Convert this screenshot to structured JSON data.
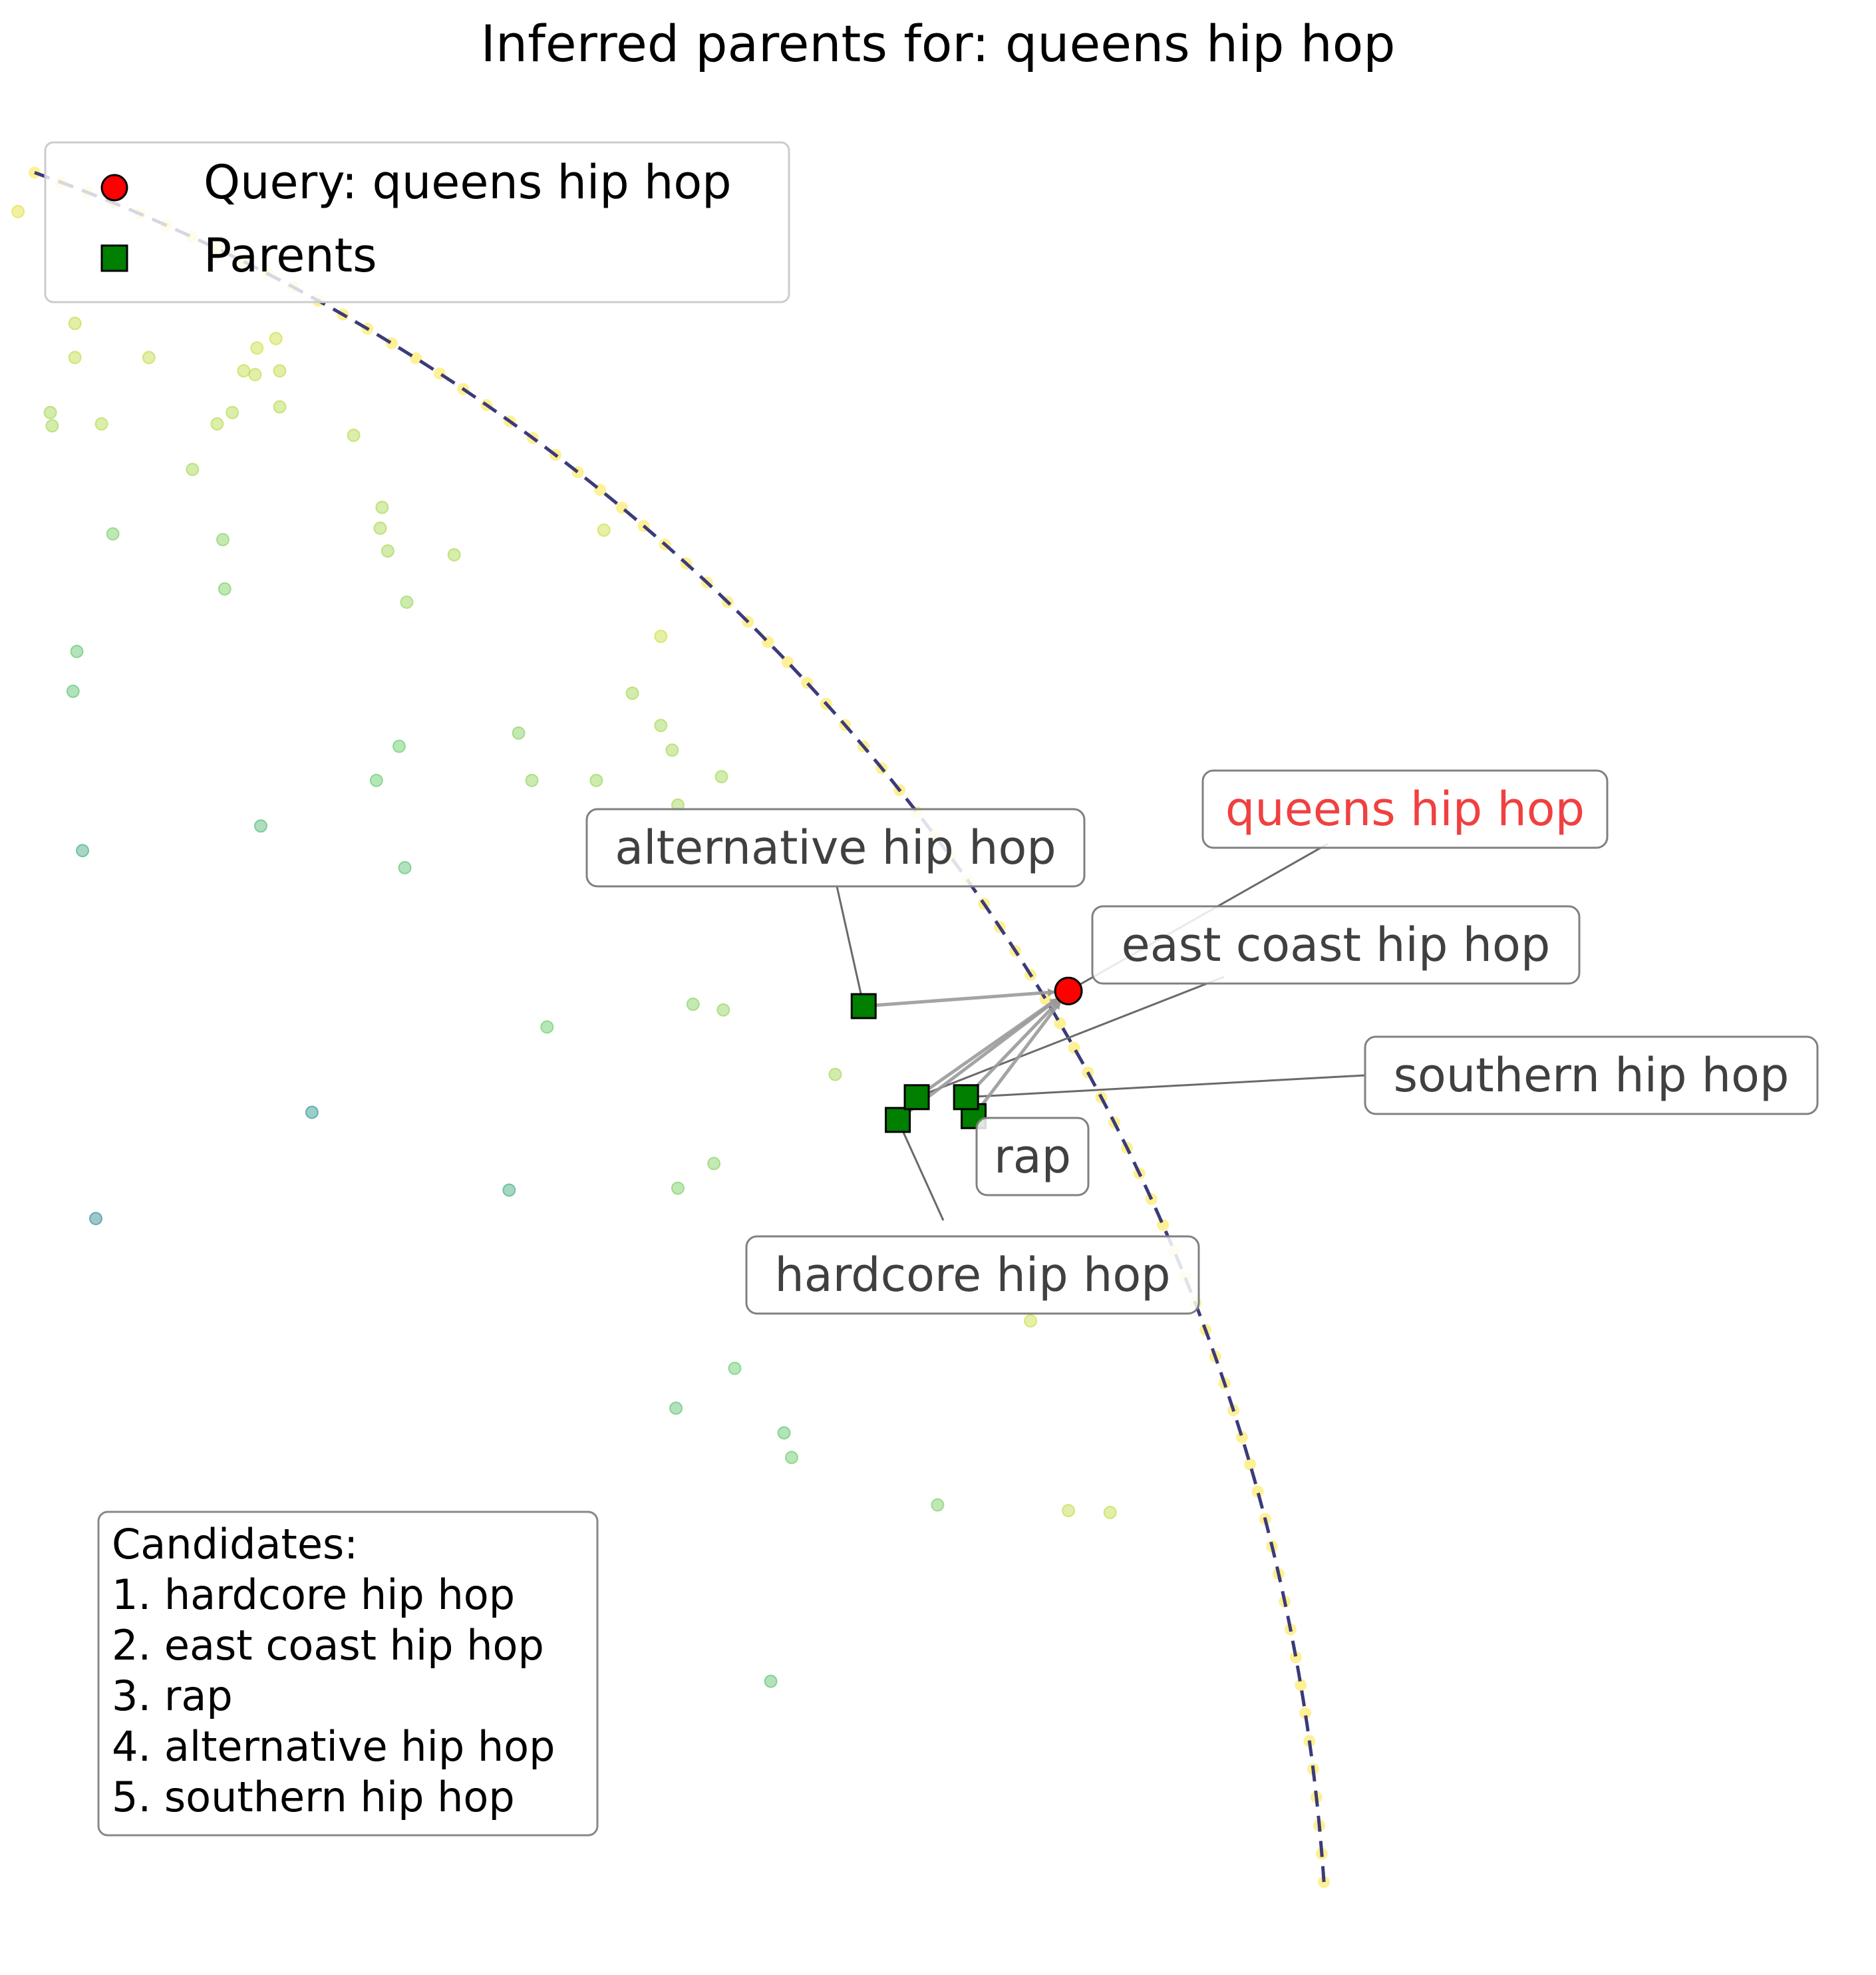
{
  "chart_data": {
    "type": "scatter",
    "title": "Inferred parents for: queens hip hop",
    "xlabel": "",
    "ylabel": "",
    "axes_visible": false,
    "grid": false,
    "legend_placement": "top-left",
    "legend": [
      {
        "name": "Query: queens hip hop",
        "marker": "circle",
        "color": "#ff0000"
      },
      {
        "name": "Parents",
        "marker": "square",
        "color": "#007f00"
      }
    ],
    "query": {
      "label": "queens hip hop",
      "x": 0.543,
      "y": -0.012,
      "label_color": "#f04040"
    },
    "parents": [
      {
        "label": "hardcore hip hop",
        "x": 0.453,
        "y": -0.08
      },
      {
        "label": "east coast hip hop",
        "x": 0.463,
        "y": -0.068
      },
      {
        "label": "rap",
        "x": 0.493,
        "y": -0.078
      },
      {
        "label": "alternative hip hop",
        "x": 0.435,
        "y": -0.02
      },
      {
        "label": "southern hip hop",
        "x": 0.489,
        "y": -0.068
      }
    ],
    "boundary_curve": {
      "style": "dashed",
      "color": "#3b3b7a"
    },
    "background_points_colormap": "viridis",
    "background_points": [
      [
        -0.011,
        0.399,
        0.95
      ],
      [
        0.019,
        0.34,
        0.9
      ],
      [
        0.019,
        0.322,
        0.9
      ],
      [
        0.006,
        0.293,
        0.85
      ],
      [
        0.033,
        0.287,
        0.88
      ],
      [
        0.007,
        0.286,
        0.85
      ],
      [
        0.058,
        0.322,
        0.9
      ],
      [
        0.115,
        0.327,
        0.92
      ],
      [
        0.108,
        0.315,
        0.9
      ],
      [
        0.114,
        0.313,
        0.9
      ],
      [
        0.125,
        0.332,
        0.92
      ],
      [
        0.127,
        0.315,
        0.9
      ],
      [
        0.102,
        0.293,
        0.88
      ],
      [
        0.094,
        0.287,
        0.88
      ],
      [
        0.127,
        0.296,
        0.88
      ],
      [
        0.081,
        0.263,
        0.85
      ],
      [
        0.039,
        0.229,
        0.78
      ],
      [
        0.097,
        0.226,
        0.8
      ],
      [
        0.098,
        0.2,
        0.78
      ],
      [
        0.02,
        0.167,
        0.72
      ],
      [
        0.018,
        0.146,
        0.7
      ],
      [
        0.166,
        0.281,
        0.88
      ],
      [
        0.181,
        0.243,
        0.86
      ],
      [
        0.18,
        0.232,
        0.86
      ],
      [
        0.184,
        0.22,
        0.85
      ],
      [
        0.194,
        0.193,
        0.83
      ],
      [
        0.219,
        0.218,
        0.86
      ],
      [
        0.313,
        0.145,
        0.85
      ],
      [
        0.328,
        0.128,
        0.85
      ],
      [
        0.334,
        0.115,
        0.85
      ],
      [
        0.19,
        0.117,
        0.75
      ],
      [
        0.178,
        0.099,
        0.74
      ],
      [
        0.253,
        0.124,
        0.8
      ],
      [
        0.26,
        0.099,
        0.82
      ],
      [
        0.294,
        0.099,
        0.83
      ],
      [
        0.36,
        0.101,
        0.85
      ],
      [
        0.337,
        0.086,
        0.85
      ],
      [
        0.023,
        0.062,
        0.6
      ],
      [
        0.117,
        0.075,
        0.66
      ],
      [
        0.193,
        0.053,
        0.7
      ],
      [
        0.268,
        -0.031,
        0.75
      ],
      [
        0.345,
        -0.019,
        0.8
      ],
      [
        0.361,
        -0.022,
        0.82
      ],
      [
        0.144,
        -0.076,
        0.5
      ],
      [
        0.03,
        -0.132,
        0.45
      ],
      [
        0.248,
        -0.117,
        0.6
      ],
      [
        0.337,
        -0.116,
        0.78
      ],
      [
        0.356,
        -0.103,
        0.8
      ],
      [
        0.367,
        -0.211,
        0.75
      ],
      [
        0.336,
        -0.232,
        0.7
      ],
      [
        0.393,
        -0.245,
        0.72
      ],
      [
        0.397,
        -0.258,
        0.75
      ],
      [
        0.474,
        -0.283,
        0.78
      ],
      [
        0.543,
        -0.286,
        0.9
      ],
      [
        0.523,
        -0.186,
        0.92
      ],
      [
        0.386,
        -0.376,
        0.7
      ],
      [
        0.565,
        -0.287,
        0.9
      ],
      [
        0.42,
        -0.056,
        0.85
      ],
      [
        0.298,
        0.231,
        0.92
      ],
      [
        0.328,
        0.175,
        0.92
      ]
    ],
    "candidates_box": {
      "heading": "Candidates:",
      "items": [
        "1. hardcore hip hop",
        "2. east coast hip hop",
        "3. rap",
        "4. alternative hip hop",
        "5. southern hip hop"
      ]
    },
    "colors": {
      "query_fill": "#ff0000",
      "parent_fill": "#007f00",
      "arrow": "#9a9a9a",
      "curve": "#3b3b7a",
      "curve_dots": "#fde968",
      "label_text": "#404040"
    }
  }
}
